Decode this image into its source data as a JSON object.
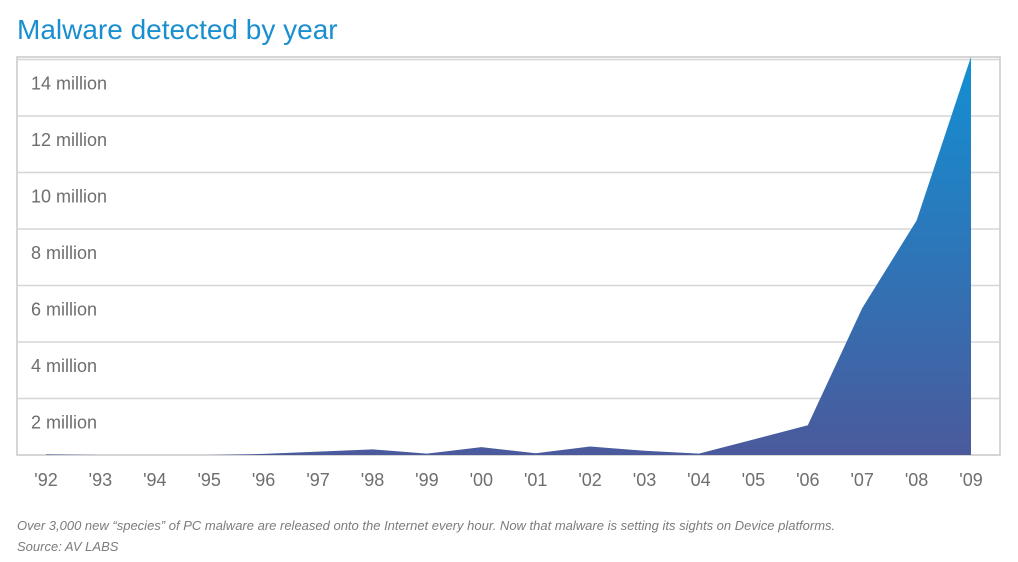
{
  "chart_data": {
    "type": "area",
    "title": "Malware detected by year",
    "categories": [
      "'92",
      "'93",
      "'94",
      "'95",
      "'96",
      "'97",
      "'98",
      "'99",
      "'00",
      "'01",
      "'02",
      "'03",
      "'04",
      "'05",
      "'06",
      "'07",
      "'08",
      "'09"
    ],
    "ytick_labels": [
      "2 million",
      "4 million",
      "6 million",
      "8 million",
      "10 million",
      "12 million",
      "14 million"
    ],
    "ytick_values": [
      2000000,
      4000000,
      6000000,
      8000000,
      10000000,
      12000000,
      14000000
    ],
    "ylim": [
      0,
      14000000
    ],
    "values": [
      20000,
      0,
      0,
      0,
      40000,
      120000,
      200000,
      50000,
      280000,
      60000,
      300000,
      150000,
      50000,
      550000,
      1050000,
      5200000,
      8300000,
      14100000
    ],
    "grid": true,
    "colors": {
      "area_top": "#1290d3",
      "area_bottom": "#4a5a9c",
      "grid": "#d6d6d6",
      "frame": "#c8c8c8",
      "text": "#6e6e6e"
    }
  },
  "caption": {
    "note": "Over 3,000 new “species” of PC malware are released onto the Internet every hour. Now that malware is setting its sights on Device platforms.",
    "source": "Source: AV LABS"
  }
}
